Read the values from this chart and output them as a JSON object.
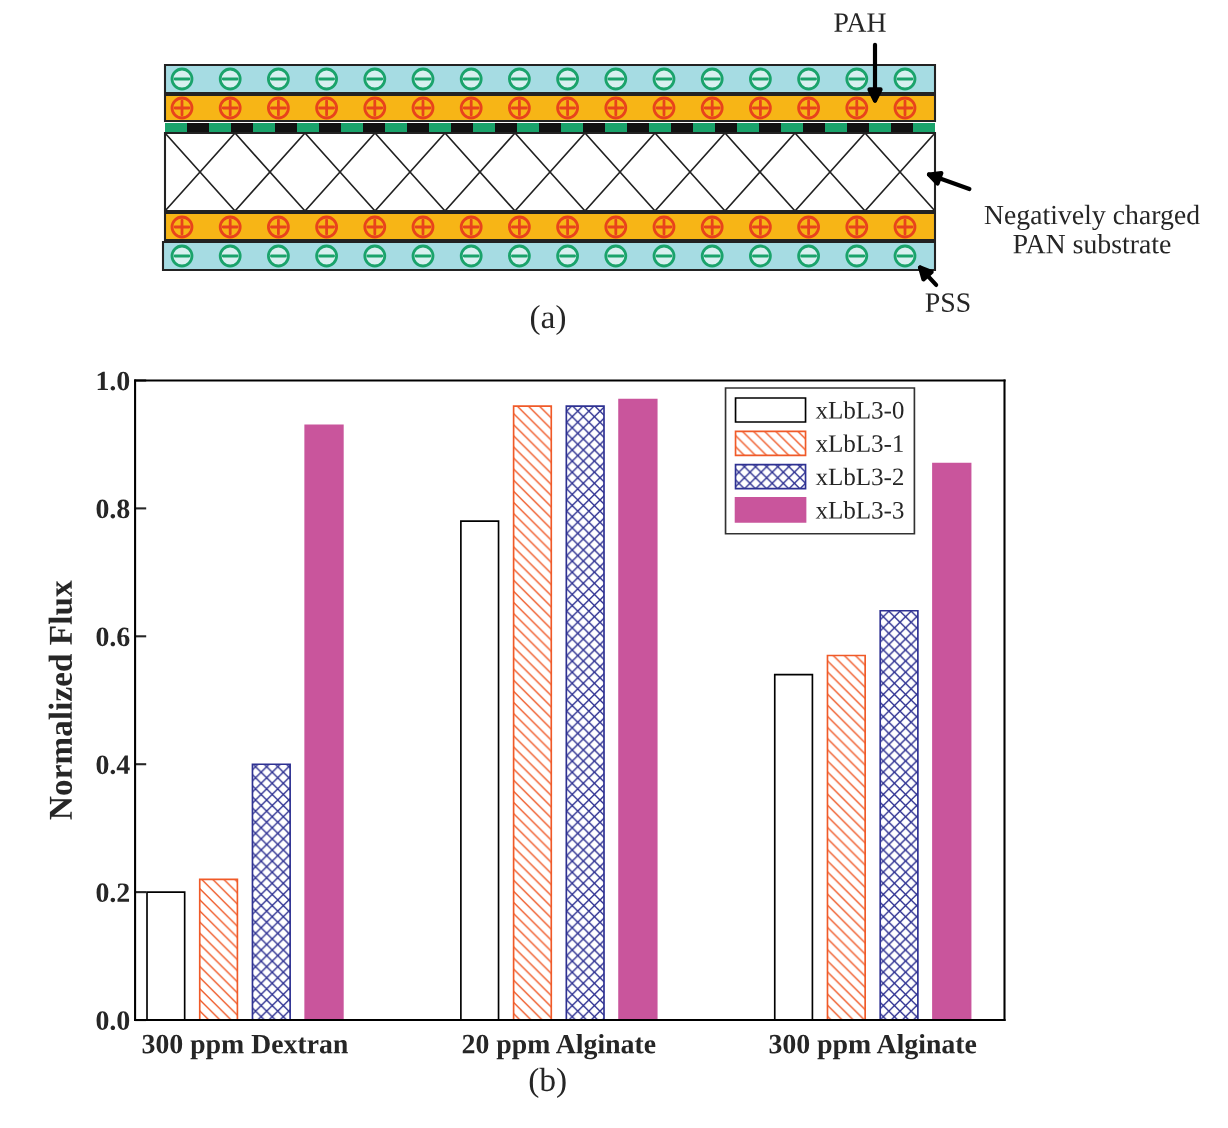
{
  "chart_data": [
    {
      "type": "other",
      "annotations": [
        "PAH",
        "Negatively charged\nPAN substrate",
        "PSS",
        "(a)"
      ]
    },
    {
      "type": "bar",
      "categories": [
        "300 ppm Dextran",
        "20 ppm Alginate",
        "300 ppm Alginate"
      ],
      "ylabel": "Normalized Flux",
      "ylim": [
        0,
        1.0
      ],
      "yticks": [
        {
          "value": 0,
          "label": "0.0"
        },
        0.2,
        0.4,
        0.6,
        0.8,
        {
          "value": 1.0,
          "label": "1.0"
        }
      ],
      "grid": false,
      "legend": "top right",
      "series": [
        {
          "name": "xLbL3-0",
          "color": "#000000",
          "values": [
            0.2,
            0.78,
            0.54
          ]
        },
        {
          "name": "xLbL3-1",
          "color": "#f05a28",
          "values": [
            0.22,
            0.96,
            0.57
          ]
        },
        {
          "name": "xLbL3-2",
          "color": "#2e3192",
          "values": [
            0.4,
            0.96,
            0.64
          ]
        },
        {
          "name": "xLbL3-3",
          "color": "#c9559c",
          "values": [
            0.93,
            0.97,
            0.87
          ]
        }
      ],
      "annotations": [
        "(b)"
      ]
    }
  ]
}
